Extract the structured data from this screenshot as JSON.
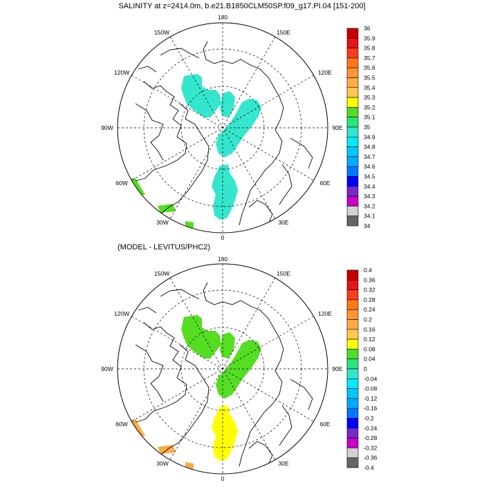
{
  "maps": [
    {
      "title": "SALINITY at z=2414.0m, b.e21.B1850CLM50SP.f09_g17.PI.04 [151-200]",
      "lon_labels": [
        "180",
        "150E",
        "120E",
        "90E",
        "60E",
        "30E",
        "0",
        "30W",
        "60W",
        "90W",
        "120W",
        "150W"
      ],
      "colorbar_labels": [
        "36",
        "35.9",
        "35.8",
        "35.7",
        "35.6",
        "35.5",
        "35.4",
        "35.3",
        "35.2",
        "35.1",
        "35",
        "34.9",
        "34.8",
        "34.7",
        "34.6",
        "34.5",
        "34.4",
        "34.3",
        "34.2",
        "34.1",
        "34"
      ],
      "region_colors": {
        "central_arctic": "#33e6cc",
        "greenland_sea": "#55dd22"
      }
    },
    {
      "title": "(MODEL - LEVITUS/PHC2)",
      "lon_labels": [
        "180",
        "150E",
        "120E",
        "90E",
        "60E",
        "30E",
        "0",
        "30W",
        "60W",
        "90W",
        "120W",
        "150W"
      ],
      "colorbar_labels": [
        "0.4",
        "0.36",
        "0.32",
        "0.28",
        "0.24",
        "0.2",
        "0.16",
        "0.12",
        "0.08",
        "0.04",
        "0",
        "-0.04",
        "-0.08",
        "-0.12",
        "-0.16",
        "-0.2",
        "-0.24",
        "-0.28",
        "-0.32",
        "-0.36",
        "-0.4"
      ],
      "region_colors": {
        "canada_basin": "#55dd22",
        "eurasian_basin": "#ffff00",
        "greenland_sea": "#ffaa44"
      }
    }
  ],
  "colorbar_colors_1": [
    "#c80000",
    "#e61414",
    "#ff3c1e",
    "#ff7814",
    "#ff9632",
    "#ffaa46",
    "#ffc850",
    "#ffff00",
    "#50dc28",
    "#28e678",
    "#33e6cc",
    "#00ebff",
    "#00c8ff",
    "#00aaff",
    "#0078ff",
    "#0000ff",
    "#7828c8",
    "#c800c8",
    "#d2d2d2",
    "#646464"
  ],
  "colorbar_colors_2": [
    "#c80000",
    "#e61414",
    "#ff3c1e",
    "#ff7814",
    "#ff9632",
    "#ffaa46",
    "#ffc850",
    "#ffff00",
    "#50dc28",
    "#28e678",
    "#33e6cc",
    "#00ebff",
    "#00c8ff",
    "#00aaff",
    "#0078ff",
    "#0000ff",
    "#7828c8",
    "#c800c8",
    "#d2d2d2",
    "#646464"
  ]
}
